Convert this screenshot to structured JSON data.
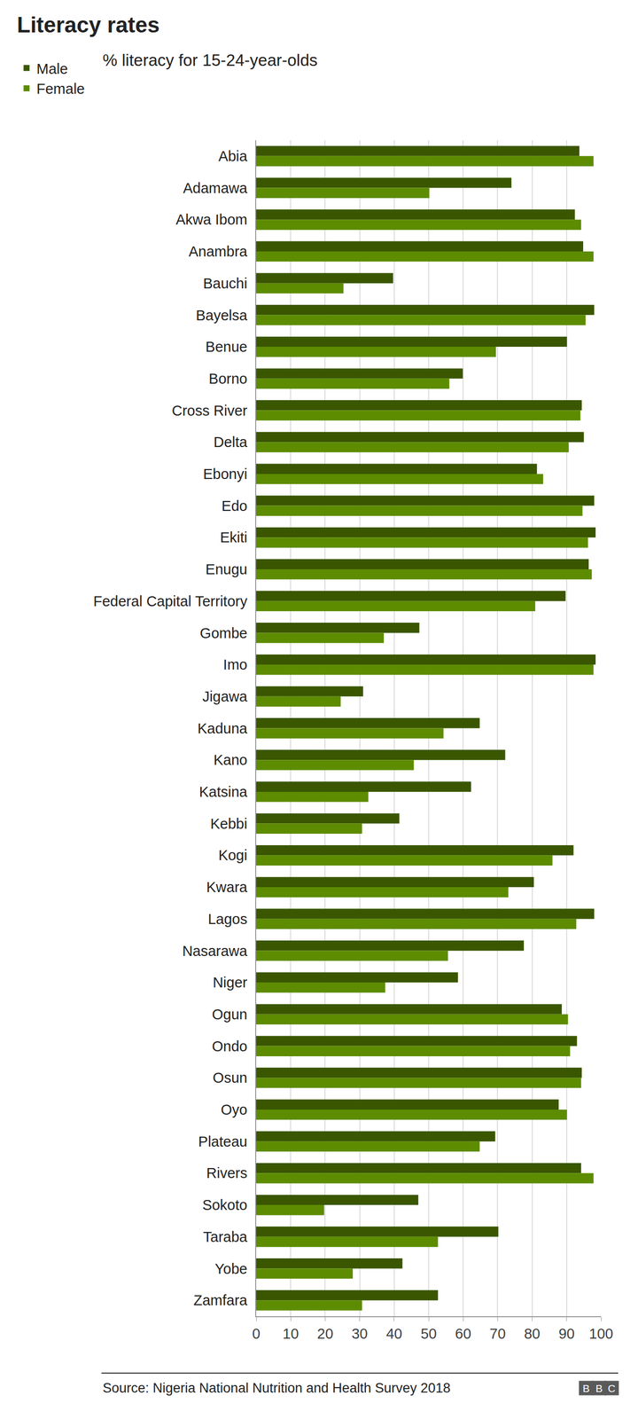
{
  "chart_data": {
    "type": "bar",
    "orientation": "horizontal",
    "title": "Literacy rates",
    "subtitle": "% literacy for 15-24-year-olds",
    "source": "Source: Nigeria National Nutrition and Health Survey 2018",
    "annotations": [
      "BBC"
    ],
    "categories": [
      "Abia",
      "Adamawa",
      "Akwa Ibom",
      "Anambra",
      "Bauchi",
      "Bayelsa",
      "Benue",
      "Borno",
      "Cross River",
      "Delta",
      "Ebonyi",
      "Edo",
      "Ekiti",
      "Enugu",
      "Federal Capital Territory",
      "Gombe",
      "Imo",
      "Jigawa",
      "Kaduna",
      "Kano",
      "Katsina",
      "Kebbi",
      "Kogi",
      "Kwara",
      "Lagos",
      "Nasarawa",
      "Niger",
      "Ogun",
      "Ondo",
      "Osun",
      "Oyo",
      "Plateau",
      "Rivers",
      "Sokoto",
      "Taraba",
      "Yobe",
      "Zamfara"
    ],
    "series": [
      {
        "name": "Male",
        "color": "#3a5700",
        "values": [
          93.7,
          74,
          92.4,
          94.8,
          39.7,
          98,
          90.1,
          59.9,
          94.4,
          95,
          81.4,
          98,
          98.4,
          96.4,
          89.7,
          47.3,
          98.4,
          31,
          64.8,
          72.2,
          62.3,
          41.5,
          92,
          80.5,
          98,
          77.6,
          58.5,
          88.6,
          93,
          94.4,
          87.7,
          69.3,
          94.2,
          47,
          70.2,
          42.4,
          52.7
        ]
      },
      {
        "name": "Female",
        "color": "#5d8c00",
        "values": [
          97.8,
          50.2,
          94.2,
          97.8,
          25.3,
          95.5,
          69.5,
          56,
          94,
          90.6,
          83.2,
          94.6,
          96.2,
          97.3,
          80.9,
          37,
          97.8,
          24.5,
          54.3,
          45.7,
          32.5,
          30.7,
          85.9,
          73.1,
          92.8,
          55.6,
          37.4,
          90.4,
          91,
          94.2,
          90.1,
          64.8,
          97.8,
          19.7,
          52.7,
          28,
          30.7
        ]
      }
    ],
    "xlim": [
      0,
      100
    ],
    "xticks": [
      0,
      10,
      20,
      30,
      40,
      50,
      60,
      70,
      80,
      90,
      100
    ],
    "grid": true,
    "legend": "top-left"
  }
}
